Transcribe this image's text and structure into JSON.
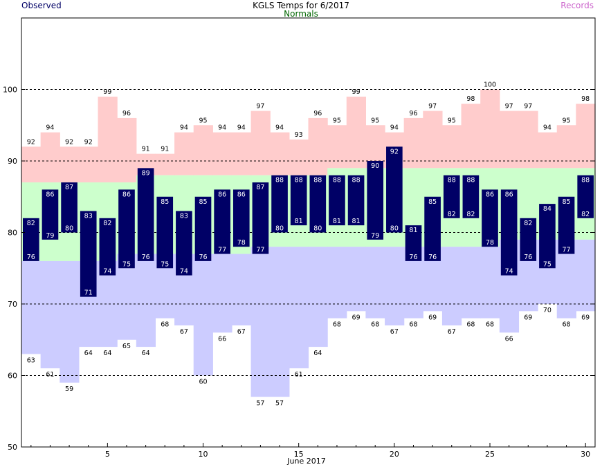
{
  "chart_data": {
    "type": "bar",
    "title": "KGLS Temps for 6/2017",
    "xlabel": "June 2017",
    "ylabel": "",
    "ylim": [
      50,
      110
    ],
    "xlim": [
      0.5,
      30.5
    ],
    "yticks": [
      50,
      60,
      70,
      80,
      90,
      100
    ],
    "xticks": [
      5,
      10,
      15,
      20,
      25,
      30
    ],
    "grid_lines_y": [
      60,
      70,
      80,
      90,
      100
    ],
    "legend": [
      {
        "label": "Observed",
        "color": "#000066"
      },
      {
        "label": "Normals",
        "color": "#006600"
      },
      {
        "label": "Records",
        "color": "#cc66cc"
      }
    ],
    "days": [
      1,
      2,
      3,
      4,
      5,
      6,
      7,
      8,
      9,
      10,
      11,
      12,
      13,
      14,
      15,
      16,
      17,
      18,
      19,
      20,
      21,
      22,
      23,
      24,
      25,
      26,
      27,
      28,
      29,
      30
    ],
    "series": [
      {
        "name": "Observed High",
        "values": [
          82,
          86,
          87,
          83,
          82,
          86,
          89,
          85,
          83,
          85,
          86,
          86,
          87,
          88,
          88,
          88,
          88,
          88,
          90,
          92,
          81,
          85,
          88,
          88,
          86,
          86,
          82,
          84,
          85,
          88
        ]
      },
      {
        "name": "Observed Low",
        "values": [
          76,
          79,
          80,
          71,
          74,
          75,
          76,
          75,
          74,
          76,
          77,
          78,
          77,
          80,
          81,
          80,
          81,
          81,
          79,
          80,
          76,
          76,
          82,
          82,
          78,
          74,
          76,
          75,
          77,
          82
        ]
      },
      {
        "name": "Normal High",
        "values": [
          87,
          87,
          87,
          87,
          87,
          87,
          88,
          88,
          88,
          88,
          88,
          88,
          88,
          88,
          88,
          88,
          89,
          89,
          89,
          89,
          89,
          89,
          89,
          89,
          89,
          89,
          89,
          89,
          89,
          89
        ]
      },
      {
        "name": "Normal Low",
        "values": [
          76,
          76,
          76,
          76,
          76,
          77,
          77,
          77,
          77,
          77,
          77,
          77,
          78,
          78,
          78,
          78,
          78,
          78,
          78,
          78,
          78,
          78,
          78,
          78,
          78,
          79,
          79,
          79,
          79,
          79
        ]
      },
      {
        "name": "Record High",
        "values": [
          92,
          94,
          92,
          92,
          99,
          96,
          91,
          91,
          94,
          95,
          94,
          94,
          97,
          94,
          93,
          96,
          95,
          99,
          95,
          94,
          96,
          97,
          95,
          98,
          100,
          97,
          97,
          94,
          95,
          98
        ]
      },
      {
        "name": "Record Low",
        "values": [
          63,
          61,
          59,
          64,
          64,
          65,
          64,
          68,
          67,
          60,
          66,
          67,
          57,
          57,
          61,
          64,
          68,
          69,
          68,
          67,
          68,
          69,
          67,
          68,
          68,
          66,
          69,
          70,
          68,
          69
        ]
      }
    ],
    "colors": {
      "observed_bar": "#000066",
      "observed_text": "#ffffff",
      "normal_fill": "#ccffcc",
      "record_high_fill": "#ffcccc",
      "record_low_fill": "#ccccff",
      "grid": "#000000",
      "frame": "#000000"
    }
  }
}
